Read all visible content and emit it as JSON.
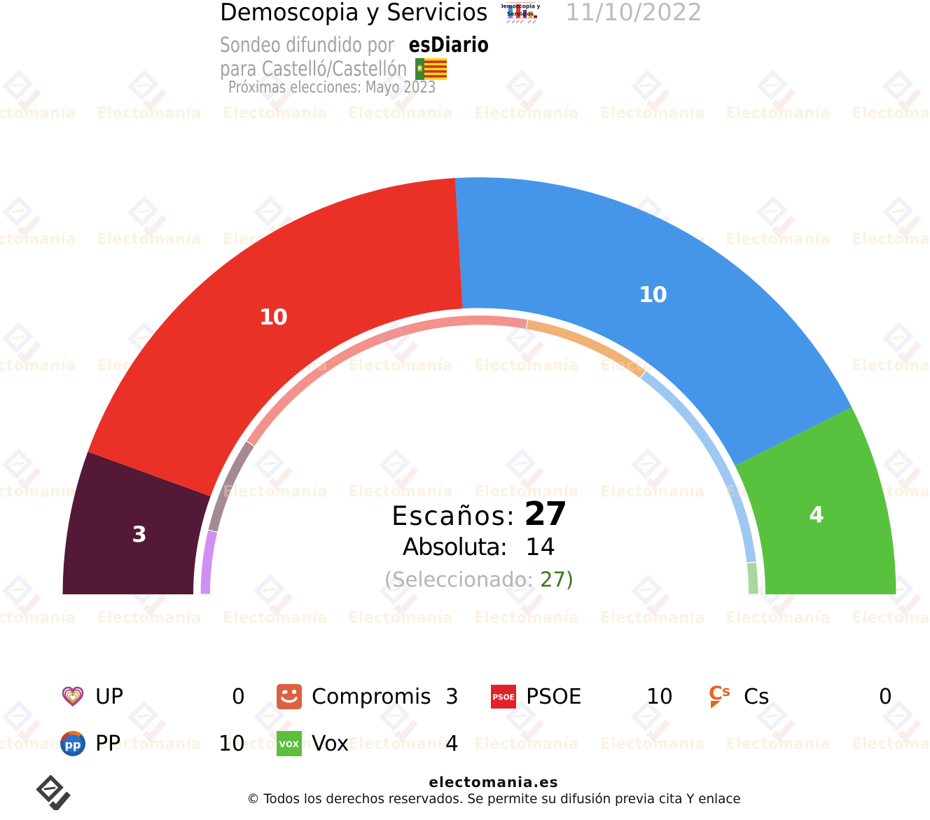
{
  "header": {
    "title": "Demoscopia y Servicios",
    "date": "11/10/2022",
    "subtitle_prefix": "Sondeo difundido por",
    "subtitle_source": "esDiario",
    "region_line": "para Castelló/Castellón",
    "election_note": "Próximas elecciones: Mayo 2023",
    "pollster_logo_line1": "Demoscopia y",
    "pollster_logo_line2": "Servicios",
    "flag_icon": "castellon-flag-icon"
  },
  "chart_data": {
    "type": "hemicycle-donut",
    "title": "Demoscopia y Servicios 11/10/2022 - Castelló/Castellón",
    "total_seats": 27,
    "majority": 14,
    "selected": 27,
    "orientation": "semicircle-180",
    "parties": [
      {
        "name": "UP",
        "seats": 0,
        "prev_seats": 2,
        "color": "#a54ac0",
        "light_color": "#d08ff2"
      },
      {
        "name": "Compromis",
        "seats": 3,
        "prev_seats": 3,
        "color": "#541937",
        "light_color": "#a58a95"
      },
      {
        "name": "PSOE",
        "seats": 10,
        "prev_seats": 10,
        "color": "#e93128",
        "light_color": "#f2928b"
      },
      {
        "name": "Cs",
        "seats": 0,
        "prev_seats": 4,
        "color": "#eb6109",
        "light_color": "#f2b176"
      },
      {
        "name": "PP",
        "seats": 10,
        "prev_seats": 7,
        "color": "#4596e8",
        "light_color": "#9dc8f2"
      },
      {
        "name": "Vox",
        "seats": 4,
        "prev_seats": 1,
        "color": "#58c23e",
        "light_color": "#a8d89b"
      }
    ]
  },
  "center": {
    "seats_label": "Escaños:",
    "seats_value": "27",
    "majority_label": "Absoluta:",
    "majority_value": "14",
    "selected_prefix": "(Seleccionado:",
    "selected_value": "27)"
  },
  "legend": {
    "items": [
      {
        "icon": "up-hearts-icon",
        "label": "UP",
        "value": "0",
        "col": 0,
        "row": 0
      },
      {
        "icon": "compromis-smiley-icon",
        "label": "Compromis",
        "value": "3",
        "col": 1,
        "row": 0
      },
      {
        "icon": "psoe-square-icon",
        "label": "PSOE",
        "value": "10",
        "col": 2,
        "row": 0,
        "icon_text": "PSOE"
      },
      {
        "icon": "cs-logo-icon",
        "label": "Cs",
        "value": "0",
        "col": 3,
        "row": 0,
        "icon_text": "Cs"
      },
      {
        "icon": "pp-circle-icon",
        "label": "PP",
        "value": "10",
        "col": 0,
        "row": 1,
        "icon_text": "pp"
      },
      {
        "icon": "vox-square-icon",
        "label": "Vox",
        "value": "4",
        "col": 1,
        "row": 1,
        "icon_text": "VOX"
      }
    ]
  },
  "footer": {
    "site": "electomania.es",
    "copyright": "© Todos los derechos reservados. Se permite su difusión previa cita Y enlace"
  },
  "watermark": {
    "text": "Electomanía"
  }
}
